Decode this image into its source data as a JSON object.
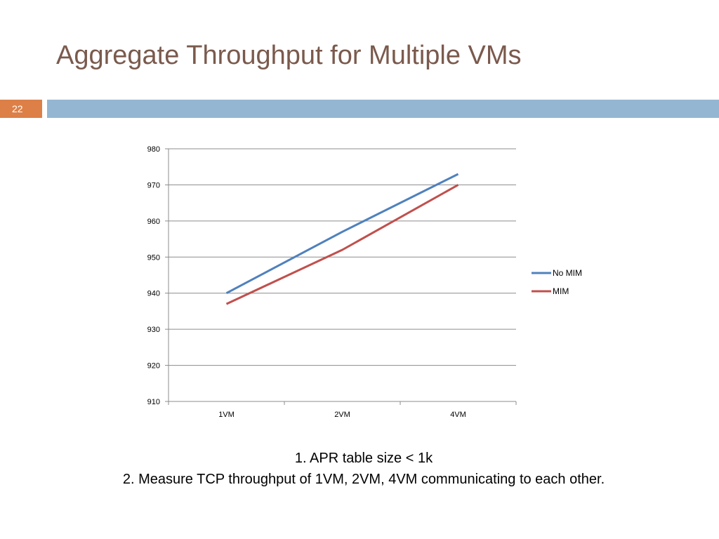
{
  "slide": {
    "title": "Aggregate Throughput for Multiple VMs",
    "number": "22",
    "notes": [
      "1. APR table size < 1k",
      "2. Measure TCP throughput of 1VM, 2VM, 4VM communicating to each other."
    ]
  },
  "colors": {
    "title": "#7a5a4d",
    "number_box": "#dd8047",
    "top_bar": "#94b6d2"
  },
  "chart_data": {
    "type": "line",
    "categories": [
      "1VM",
      "2VM",
      "4VM"
    ],
    "series": [
      {
        "name": "No MIM",
        "values": [
          940,
          957,
          973
        ],
        "color": "#4f81bd"
      },
      {
        "name": "MIM",
        "values": [
          937,
          952,
          970
        ],
        "color": "#c0504d"
      }
    ],
    "ylim": [
      910,
      980
    ],
    "yticks": [
      910,
      920,
      930,
      940,
      950,
      960,
      970,
      980
    ],
    "grid": true,
    "legend": "right",
    "title": "",
    "xlabel": "",
    "ylabel": ""
  }
}
